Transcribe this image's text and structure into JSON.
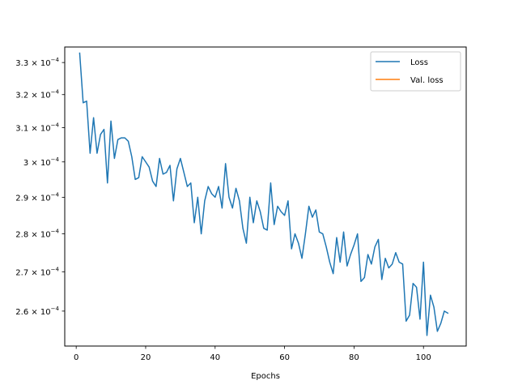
{
  "chart_data": {
    "type": "line",
    "xlabel": "Epochs",
    "ylabel": "",
    "xlim": [
      -3.3,
      112.3
    ],
    "ylim": [
      0.00025143,
      0.00033495
    ],
    "yscale": "log",
    "x_ticks": [
      0,
      20,
      40,
      60,
      80,
      100
    ],
    "x_tick_labels": [
      "0",
      "20",
      "40",
      "60",
      "80",
      "100"
    ],
    "y_ticks": [
      0.00026,
      0.00027,
      0.00028,
      0.00029,
      0.0003,
      0.00031,
      0.00032,
      0.00033
    ],
    "y_tick_labels": [
      {
        "mant": "2.6 × 10",
        "exp": "−4"
      },
      {
        "mant": "2.7 × 10",
        "exp": "−4"
      },
      {
        "mant": "2.8 × 10",
        "exp": "−4"
      },
      {
        "mant": "2.9 × 10",
        "exp": "−4"
      },
      {
        "mant": "3 × 10",
        "exp": "−4"
      },
      {
        "mant": "3.1 × 10",
        "exp": "−4"
      },
      {
        "mant": "3.2 × 10",
        "exp": "−4"
      },
      {
        "mant": "3.3 × 10",
        "exp": "−4"
      }
    ],
    "grid": false,
    "legend_position": "top-right",
    "series": [
      {
        "name": "Loss",
        "color": "#1f77b4",
        "x": [
          1,
          2,
          3,
          4,
          5,
          6,
          7,
          8,
          9,
          10,
          11,
          12,
          13,
          14,
          15,
          16,
          17,
          18,
          19,
          20,
          21,
          22,
          23,
          24,
          25,
          26,
          27,
          28,
          29,
          30,
          31,
          32,
          33,
          34,
          35,
          36,
          37,
          38,
          39,
          40,
          41,
          42,
          43,
          44,
          45,
          46,
          47,
          48,
          49,
          50,
          51,
          52,
          53,
          54,
          55,
          56,
          57,
          58,
          59,
          60,
          61,
          62,
          63,
          64,
          65,
          66,
          67,
          68,
          69,
          70,
          71,
          72,
          73,
          74,
          75,
          76,
          77,
          78,
          79,
          80,
          81,
          82,
          83,
          84,
          85,
          86,
          87,
          88,
          89,
          90,
          91,
          92,
          93,
          94,
          95,
          96,
          97,
          98,
          99,
          100,
          101,
          102,
          103,
          104,
          105,
          106,
          107
        ],
        "values": [
          0.000333,
          0.0003175,
          0.000318,
          0.0003025,
          0.000313,
          0.0003025,
          0.000308,
          0.0003095,
          0.000294,
          0.000312,
          0.000301,
          0.0003065,
          0.000307,
          0.000307,
          0.000306,
          0.0003015,
          0.000295,
          0.0002955,
          0.0003015,
          0.0003,
          0.0002985,
          0.0002945,
          0.000293,
          0.000301,
          0.0002965,
          0.000297,
          0.000299,
          0.000289,
          0.000298,
          0.000301,
          0.000297,
          0.000293,
          0.000294,
          0.000283,
          0.00029,
          0.00028,
          0.000289,
          0.000293,
          0.000291,
          0.00029,
          0.000293,
          0.000287,
          0.0002995,
          0.00029,
          0.000287,
          0.0002925,
          0.000289,
          0.0002815,
          0.0002775,
          0.00029,
          0.000283,
          0.000289,
          0.000286,
          0.0002815,
          0.000281,
          0.000294,
          0.0002825,
          0.0002875,
          0.000286,
          0.000285,
          0.000289,
          0.000276,
          0.00028,
          0.0002775,
          0.0002735,
          0.00028,
          0.0002875,
          0.0002845,
          0.0002865,
          0.0002805,
          0.00028,
          0.0002765,
          0.0002725,
          0.0002695,
          0.000279,
          0.0002725,
          0.0002805,
          0.0002715,
          0.0002745,
          0.000277,
          0.00028,
          0.0002675,
          0.0002685,
          0.0002745,
          0.000272,
          0.0002765,
          0.0002785,
          0.000268,
          0.0002735,
          0.000271,
          0.000272,
          0.000275,
          0.0002725,
          0.000272,
          0.0002575,
          0.000259,
          0.000267,
          0.000266,
          0.000258,
          0.0002725,
          0.000254,
          0.000264,
          0.000261,
          0.000255,
          0.000257,
          0.00026,
          0.0002595
        ]
      },
      {
        "name": "Val. loss",
        "color": "#ff7f0e",
        "x": [],
        "values": []
      }
    ]
  }
}
